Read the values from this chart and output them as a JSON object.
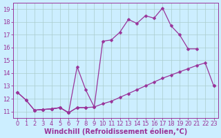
{
  "bg_color": "#cceeff",
  "grid_color": "#aacccc",
  "line_color": "#993399",
  "marker": "D",
  "markersize": 2.5,
  "xlabel": "Windchill (Refroidissement éolien,°C)",
  "xlabel_fontsize": 7,
  "tick_fontsize": 6,
  "xlim": [
    -0.5,
    23.5
  ],
  "ylim": [
    10.5,
    19.5
  ],
  "yticks": [
    11,
    12,
    13,
    14,
    15,
    16,
    17,
    18,
    19
  ],
  "xticks": [
    0,
    1,
    2,
    3,
    4,
    5,
    6,
    7,
    8,
    9,
    10,
    11,
    12,
    13,
    14,
    15,
    16,
    17,
    18,
    19,
    20,
    21,
    22,
    23
  ],
  "curve1_x": [
    0,
    1,
    2,
    3,
    4,
    5,
    6,
    7,
    8
  ],
  "curve1_y": [
    12.5,
    11.9,
    11.1,
    11.15,
    11.2,
    11.3,
    10.9,
    11.3,
    11.3
  ],
  "curve2_x": [
    2,
    3,
    4,
    5,
    6,
    7,
    8,
    9,
    10,
    11,
    12,
    13,
    14,
    15,
    16,
    17,
    18,
    19,
    20,
    21,
    22,
    23
  ],
  "curve2_y": [
    11.1,
    11.15,
    11.2,
    11.3,
    10.9,
    11.3,
    11.3,
    11.35,
    11.6,
    11.8,
    12.1,
    12.4,
    12.7,
    13.0,
    13.3,
    13.6,
    13.85,
    14.1,
    14.35,
    14.6,
    14.8,
    13.0
  ],
  "curve3_x": [
    0,
    1,
    2,
    3,
    4,
    5,
    6,
    7,
    8,
    9,
    10,
    11,
    12,
    13,
    14,
    15,
    16,
    17,
    18,
    19,
    20,
    21,
    22,
    23
  ],
  "curve3_y": [
    12.5,
    11.9,
    11.1,
    11.15,
    11.2,
    11.3,
    10.9,
    14.5,
    12.7,
    11.35,
    16.5,
    16.6,
    17.2,
    18.2,
    17.9,
    18.5,
    18.3,
    19.1,
    17.7,
    17.0,
    15.9,
    15.9,
    null,
    13.0
  ]
}
